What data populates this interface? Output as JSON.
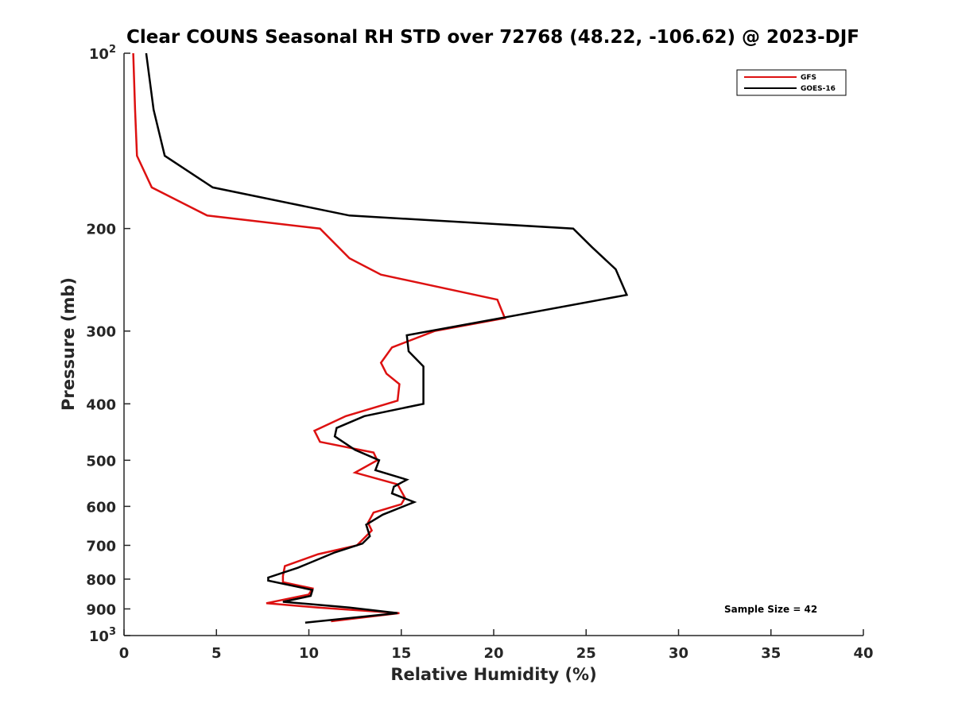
{
  "chart_data": {
    "type": "line",
    "title": "Clear COUNS Seasonal RH STD over 72768 (48.22, -106.62) @ 2023-DJF",
    "xlabel": "Relative Humidity (%)",
    "ylabel": "Pressure (mb)",
    "xlim": [
      0,
      40
    ],
    "ylim": [
      100,
      1000
    ],
    "yscale": "log",
    "y_reversed": true,
    "xticks": [
      0,
      5,
      10,
      15,
      20,
      25,
      30,
      35,
      40
    ],
    "yticks": [
      {
        "value": 100,
        "base": "10",
        "exp": "2"
      },
      {
        "value": 200,
        "label": "200"
      },
      {
        "value": 300,
        "label": "300"
      },
      {
        "value": 400,
        "label": "400"
      },
      {
        "value": 500,
        "label": "500"
      },
      {
        "value": 600,
        "label": "600"
      },
      {
        "value": 700,
        "label": "700"
      },
      {
        "value": 800,
        "label": "800"
      },
      {
        "value": 900,
        "label": "900"
      },
      {
        "value": 1000,
        "base": "10",
        "exp": "3"
      }
    ],
    "legend": {
      "position": "top-right"
    },
    "annotation": "Sample Size = 42",
    "series": [
      {
        "name": "GFS",
        "color": "#dd1111",
        "points": [
          [
            0.5,
            100
          ],
          [
            0.6,
            125
          ],
          [
            0.7,
            150
          ],
          [
            1.5,
            170
          ],
          [
            4.5,
            190
          ],
          [
            10.6,
            200
          ],
          [
            12.2,
            225
          ],
          [
            13.9,
            240
          ],
          [
            20.2,
            265
          ],
          [
            20.6,
            285
          ],
          [
            16.8,
            300
          ],
          [
            14.5,
            320
          ],
          [
            13.9,
            340
          ],
          [
            14.2,
            355
          ],
          [
            14.9,
            370
          ],
          [
            14.8,
            395
          ],
          [
            12.0,
            420
          ],
          [
            10.3,
            445
          ],
          [
            10.6,
            465
          ],
          [
            13.5,
            485
          ],
          [
            13.7,
            500
          ],
          [
            12.5,
            525
          ],
          [
            14.8,
            550
          ],
          [
            15.0,
            565
          ],
          [
            15.2,
            580
          ],
          [
            15.0,
            595
          ],
          [
            13.5,
            615
          ],
          [
            13.2,
            640
          ],
          [
            13.4,
            660
          ],
          [
            12.6,
            700
          ],
          [
            10.5,
            725
          ],
          [
            8.7,
            760
          ],
          [
            8.6,
            790
          ],
          [
            8.6,
            810
          ],
          [
            10.2,
            830
          ],
          [
            10.0,
            850
          ],
          [
            7.7,
            880
          ],
          [
            10.5,
            895
          ],
          [
            14.9,
            915
          ],
          [
            11.2,
            945
          ]
        ]
      },
      {
        "name": "GOES-16",
        "color": "#000000",
        "points": [
          [
            1.2,
            100
          ],
          [
            1.6,
            125
          ],
          [
            2.2,
            150
          ],
          [
            4.8,
            170
          ],
          [
            12.2,
            190
          ],
          [
            24.3,
            200
          ],
          [
            25.3,
            215
          ],
          [
            26.6,
            235
          ],
          [
            27.2,
            260
          ],
          [
            20.4,
            285
          ],
          [
            15.3,
            305
          ],
          [
            15.4,
            325
          ],
          [
            16.2,
            345
          ],
          [
            16.2,
            375
          ],
          [
            16.2,
            400
          ],
          [
            13.0,
            420
          ],
          [
            11.5,
            440
          ],
          [
            11.4,
            455
          ],
          [
            12.5,
            480
          ],
          [
            13.8,
            500
          ],
          [
            13.6,
            520
          ],
          [
            15.3,
            540
          ],
          [
            14.6,
            555
          ],
          [
            14.5,
            570
          ],
          [
            15.1,
            580
          ],
          [
            15.7,
            590
          ],
          [
            14.0,
            620
          ],
          [
            13.1,
            645
          ],
          [
            13.2,
            660
          ],
          [
            13.3,
            675
          ],
          [
            12.9,
            695
          ],
          [
            11.4,
            720
          ],
          [
            9.4,
            765
          ],
          [
            7.8,
            795
          ],
          [
            7.8,
            805
          ],
          [
            10.2,
            835
          ],
          [
            10.1,
            855
          ],
          [
            8.6,
            875
          ],
          [
            12.2,
            895
          ],
          [
            14.8,
            915
          ],
          [
            9.8,
            950
          ]
        ]
      }
    ]
  }
}
